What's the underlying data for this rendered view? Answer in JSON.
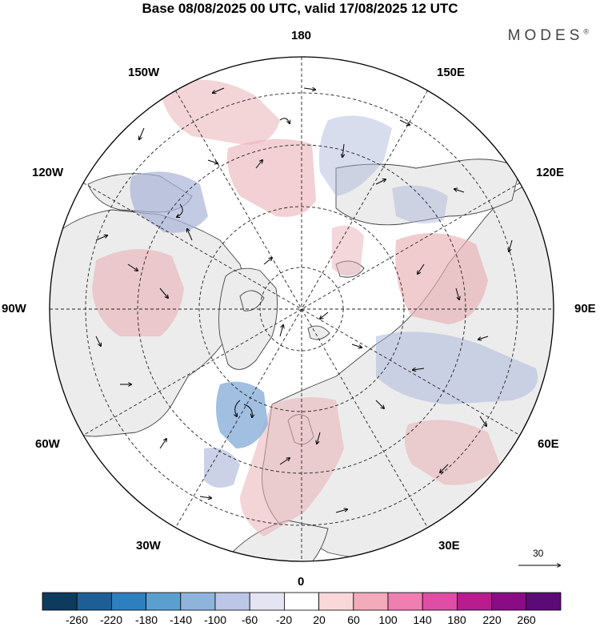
{
  "title": "Base 08/08/2025 00 UTC, valid 17/08/2025 12 UTC",
  "brand": "MODES",
  "brand_mark": "®",
  "longitude_labels": {
    "top": "180",
    "upper_left": "150W",
    "upper_right": "150E",
    "mid_upper_left": "120W",
    "mid_upper_right": "120E",
    "left": "90W",
    "right": "90E",
    "mid_lower_left": "60W",
    "mid_lower_right": "60E",
    "lower_left": "30W",
    "lower_right": "30E",
    "bottom": "0"
  },
  "reference_vector": {
    "label": "30"
  },
  "colorbar": {
    "labels": [
      "-260",
      "-220",
      "-180",
      "-140",
      "-100",
      "-60",
      "-20",
      "20",
      "60",
      "100",
      "140",
      "180",
      "220",
      "260"
    ],
    "colors": [
      "#0e3a5e",
      "#1d5f94",
      "#2e7fbf",
      "#5b9fd0",
      "#8fb4dc",
      "#bcc6e6",
      "#e4e4f2",
      "#ffffff",
      "#f8d8d8",
      "#f3aabb",
      "#ee7fb0",
      "#e04da4",
      "#b81c8e",
      "#8a0b86",
      "#5b0a77"
    ]
  },
  "colors": {
    "land": "#ececec",
    "ocean": "#ffffff",
    "coast": "#444444",
    "positive_anomaly": "#eab0b6",
    "negative_anomaly": "#a8b4d9"
  }
}
